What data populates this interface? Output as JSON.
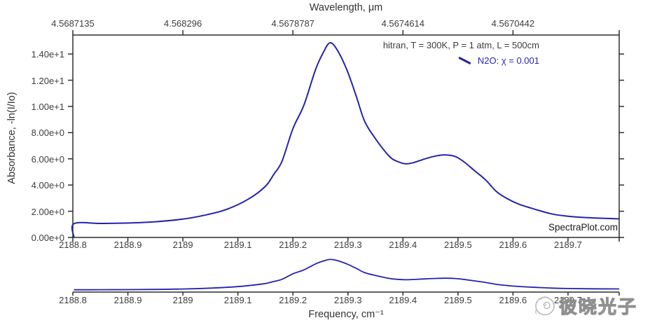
{
  "legend": {
    "model_line": "hitran, T = 300K, P = 1 atm, L = 500cm",
    "series_label": "N2O: χ = 0.001",
    "series_color": "#2626bb"
  },
  "annotations": {
    "brand": "SpectraPlot.com"
  },
  "watermark": {
    "text": "彼晓光子",
    "logo": "scribble-badge-icon"
  },
  "colors": {
    "curve": "#2323ad",
    "axis": "#2e2e2e",
    "tick_text": "#3d3d3d"
  },
  "chart_data": {
    "type": "line",
    "title": "",
    "grid": false,
    "legend_position": "top-right",
    "top_axis": {
      "label": "Wavelength, μm",
      "tick_labels": [
        "4.5687135",
        "4.568296",
        "4.5678787",
        "4.5674614",
        "4.5670442"
      ],
      "tick_values": [
        2188.8,
        2189.0,
        2189.2,
        2189.4,
        2189.6
      ]
    },
    "x_axis": {
      "label": "Frequency, cm⁻¹",
      "tick_labels": [
        "2188.8",
        "2188.9",
        "2189",
        "2189.1",
        "2189.2",
        "2189.3",
        "2189.4",
        "2189.5",
        "2189.6",
        "2189.7"
      ],
      "tick_values": [
        2188.8,
        2188.9,
        2189.0,
        2189.1,
        2189.2,
        2189.3,
        2189.4,
        2189.5,
        2189.6,
        2189.7
      ],
      "range": [
        2188.8,
        2189.793
      ]
    },
    "y_axis": {
      "label": "Absorbance, -ln(I/Io)",
      "tick_labels": [
        "0.00e+0",
        "2.00e+0",
        "4.00e+0",
        "6.00e+0",
        "8.00e+0",
        "1.00e+1",
        "1.20e+1",
        "1.40e+1"
      ],
      "tick_values": [
        0,
        2,
        4,
        6,
        8,
        10,
        12,
        14
      ],
      "range": [
        0,
        15.45
      ]
    },
    "navigator": {
      "shown": true,
      "range": [
        2188.8,
        2189.793
      ]
    },
    "series": [
      {
        "name": "N2O: χ = 0.001",
        "color": "#2323ad",
        "points": [
          [
            2188.802,
            0.0
          ],
          [
            2188.802,
            1.05
          ],
          [
            2188.85,
            1.07
          ],
          [
            2188.9,
            1.1
          ],
          [
            2188.95,
            1.2
          ],
          [
            2189.0,
            1.4
          ],
          [
            2189.04,
            1.7
          ],
          [
            2189.08,
            2.15
          ],
          [
            2189.12,
            2.95
          ],
          [
            2189.15,
            3.9
          ],
          [
            2189.165,
            4.8
          ],
          [
            2189.18,
            5.8
          ],
          [
            2189.2,
            8.3
          ],
          [
            2189.22,
            10.1
          ],
          [
            2189.241,
            12.8
          ],
          [
            2189.255,
            14.1
          ],
          [
            2189.267,
            14.85
          ],
          [
            2189.28,
            14.35
          ],
          [
            2189.298,
            12.8
          ],
          [
            2189.315,
            10.8
          ],
          [
            2189.33,
            8.9
          ],
          [
            2189.349,
            7.6
          ],
          [
            2189.375,
            6.2
          ],
          [
            2189.39,
            5.8
          ],
          [
            2189.405,
            5.62
          ],
          [
            2189.42,
            5.72
          ],
          [
            2189.44,
            6.0
          ],
          [
            2189.46,
            6.22
          ],
          [
            2189.478,
            6.3
          ],
          [
            2189.495,
            6.18
          ],
          [
            2189.51,
            5.8
          ],
          [
            2189.53,
            5.1
          ],
          [
            2189.55,
            4.4
          ],
          [
            2189.57,
            3.5
          ],
          [
            2189.59,
            2.95
          ],
          [
            2189.61,
            2.55
          ],
          [
            2189.64,
            2.15
          ],
          [
            2189.67,
            1.8
          ],
          [
            2189.7,
            1.62
          ],
          [
            2189.74,
            1.5
          ],
          [
            2189.793,
            1.42
          ]
        ]
      }
    ]
  }
}
